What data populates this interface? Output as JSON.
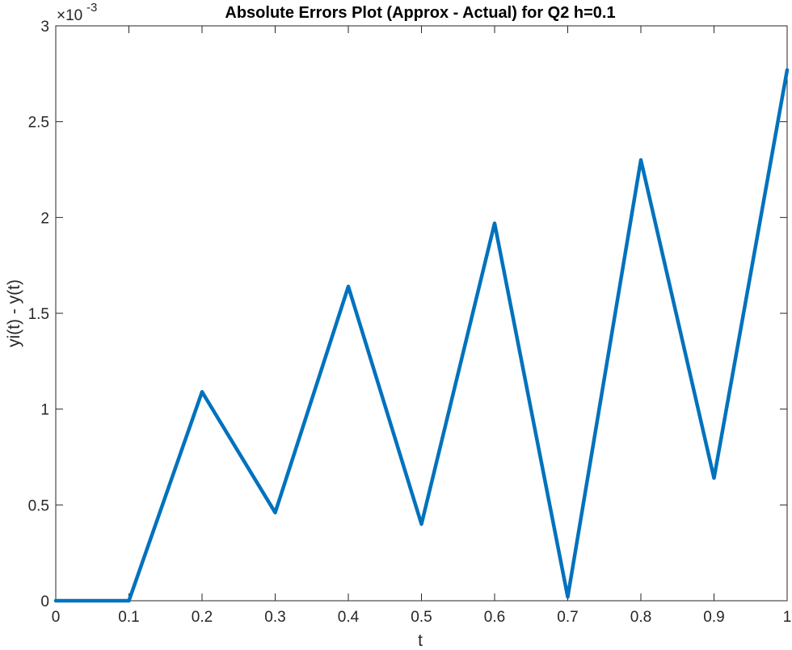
{
  "chart_data": {
    "type": "line",
    "title": "Absolute Errors Plot (Approx - Actual) for Q2 h=0.1",
    "xlabel": "t",
    "ylabel": "yi(t) - y(t)",
    "y_exponent_label": "×10",
    "y_exponent_power": "-3",
    "xlim": [
      0,
      1
    ],
    "ylim": [
      0,
      3
    ],
    "y_scale_note": "y values in units of 1e-3",
    "x_ticks": [
      "0",
      "0.1",
      "0.2",
      "0.3",
      "0.4",
      "0.5",
      "0.6",
      "0.7",
      "0.8",
      "0.9",
      "1"
    ],
    "x_tick_values": [
      0,
      0.1,
      0.2,
      0.3,
      0.4,
      0.5,
      0.6,
      0.7,
      0.8,
      0.9,
      1
    ],
    "y_ticks": [
      "0",
      "0.5",
      "1",
      "1.5",
      "2",
      "2.5",
      "3"
    ],
    "y_tick_values": [
      0,
      0.5,
      1,
      1.5,
      2,
      2.5,
      3
    ],
    "grid": false,
    "legend": "none",
    "series": [
      {
        "color": "#0072BD",
        "x": [
          0,
          0.1,
          0.2,
          0.3,
          0.4,
          0.5,
          0.6,
          0.7,
          0.8,
          0.9,
          1
        ],
        "y": [
          0,
          0,
          1.09,
          0.46,
          1.64,
          0.4,
          1.97,
          0.02,
          2.3,
          0.64,
          2.77
        ]
      }
    ]
  }
}
